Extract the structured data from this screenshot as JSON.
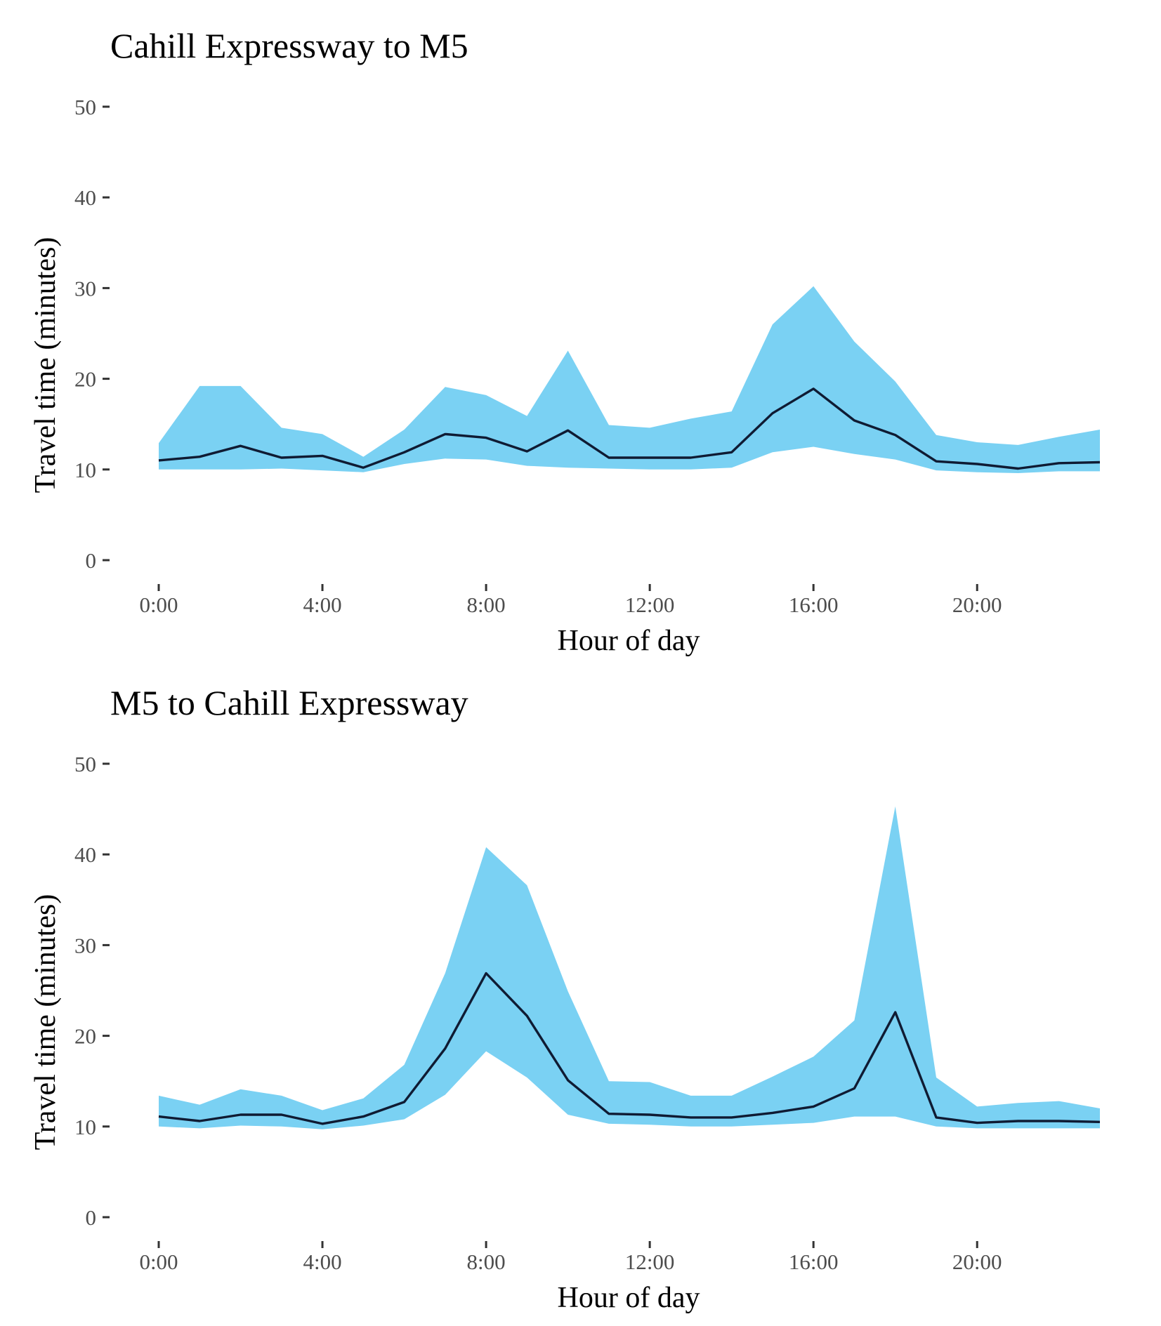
{
  "colors": {
    "band": "#7ad1f3",
    "line": "#0f1b33",
    "tick": "#333333",
    "tick_label": "#4d4d4d"
  },
  "chart_data": [
    {
      "type": "area",
      "title": "Cahill Expressway to M5",
      "xlabel": "Hour of day",
      "ylabel": "Travel time (minutes)",
      "xlim": [
        0,
        23
      ],
      "ylim": [
        0,
        50
      ],
      "x_ticks": [
        0,
        4,
        8,
        12,
        16,
        20
      ],
      "x_tick_labels": [
        "0:00",
        "4:00",
        "8:00",
        "12:00",
        "16:00",
        "20:00"
      ],
      "y_ticks": [
        0,
        10,
        20,
        30,
        40,
        50
      ],
      "y_tick_labels": [
        "0",
        "10",
        "20",
        "30",
        "40",
        "50"
      ],
      "grid": false,
      "x": [
        0,
        1,
        2,
        3,
        4,
        5,
        6,
        7,
        8,
        9,
        10,
        11,
        12,
        13,
        14,
        15,
        16,
        17,
        18,
        19,
        20,
        21,
        22,
        23
      ],
      "band_upper": [
        12.9,
        19.2,
        19.2,
        14.6,
        13.9,
        11.4,
        14.4,
        19.1,
        18.2,
        15.9,
        23.1,
        14.9,
        14.6,
        15.6,
        16.4,
        26.0,
        30.2,
        24.1,
        19.7,
        13.8,
        13.0,
        12.7,
        13.6,
        14.4
      ],
      "band_lower": [
        10.0,
        10.0,
        10.0,
        10.1,
        9.9,
        9.7,
        10.6,
        11.2,
        11.1,
        10.4,
        10.2,
        10.1,
        10.0,
        10.0,
        10.2,
        11.9,
        12.5,
        11.7,
        11.1,
        9.9,
        9.7,
        9.6,
        9.8,
        9.8
      ],
      "median": [
        11.0,
        11.4,
        12.6,
        11.3,
        11.5,
        10.2,
        11.9,
        13.9,
        13.5,
        12.0,
        14.3,
        11.3,
        11.3,
        11.3,
        11.9,
        16.2,
        18.9,
        15.4,
        13.8,
        10.9,
        10.6,
        10.1,
        10.7,
        10.8
      ]
    },
    {
      "type": "area",
      "title": "M5 to Cahill Expressway",
      "xlabel": "Hour of day",
      "ylabel": "Travel time (minutes)",
      "xlim": [
        0,
        23
      ],
      "ylim": [
        0,
        50
      ],
      "x_ticks": [
        0,
        4,
        8,
        12,
        16,
        20
      ],
      "x_tick_labels": [
        "0:00",
        "4:00",
        "8:00",
        "12:00",
        "16:00",
        "20:00"
      ],
      "y_ticks": [
        0,
        10,
        20,
        30,
        40,
        50
      ],
      "y_tick_labels": [
        "0",
        "10",
        "20",
        "30",
        "40",
        "50"
      ],
      "grid": false,
      "x": [
        0,
        1,
        2,
        3,
        4,
        5,
        6,
        7,
        8,
        9,
        10,
        11,
        12,
        13,
        14,
        15,
        16,
        17,
        18,
        19,
        20,
        21,
        22,
        23
      ],
      "band_upper": [
        13.4,
        12.4,
        14.1,
        13.4,
        11.8,
        13.1,
        16.8,
        26.9,
        40.8,
        36.6,
        24.9,
        15.0,
        14.9,
        13.4,
        13.4,
        15.5,
        17.7,
        21.7,
        45.3,
        15.4,
        12.2,
        12.6,
        12.8,
        12.0
      ],
      "band_lower": [
        10.0,
        9.8,
        10.1,
        10.0,
        9.7,
        10.1,
        10.8,
        13.5,
        18.3,
        15.4,
        11.3,
        10.3,
        10.2,
        10.0,
        10.0,
        10.2,
        10.4,
        11.1,
        11.1,
        10.0,
        9.8,
        9.8,
        9.8,
        9.8
      ],
      "median": [
        11.1,
        10.6,
        11.3,
        11.3,
        10.3,
        11.1,
        12.7,
        18.6,
        26.9,
        22.2,
        15.1,
        11.4,
        11.3,
        11.0,
        11.0,
        11.5,
        12.2,
        14.2,
        22.6,
        11.0,
        10.4,
        10.6,
        10.6,
        10.5
      ]
    }
  ]
}
